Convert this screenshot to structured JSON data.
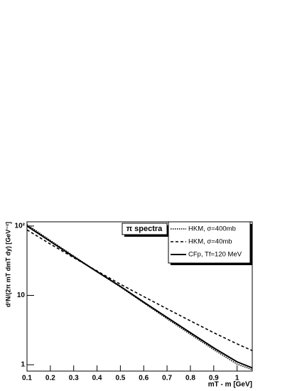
{
  "chart_data": {
    "type": "line",
    "title": "π spectra",
    "x_label": "mT - m [GeV]",
    "y_label": "d²N/(2π mT dmT dy) [GeV⁻²]",
    "x": [
      0.1,
      0.2,
      0.3,
      0.4,
      0.5,
      0.6,
      0.7,
      0.8,
      0.9,
      1.0,
      1.065
    ],
    "series": [
      {
        "name": "HKM, σ=400mb",
        "color": "#000000",
        "line_style": "dotted",
        "values": [
          105,
          62,
          37,
          22,
          13.2,
          7.8,
          4.6,
          2.75,
          1.65,
          1.02,
          0.85
        ]
      },
      {
        "name": "HKM, σ=40mb",
        "color": "#000000",
        "line_style": "dashed",
        "values": [
          88,
          55,
          35,
          22.5,
          14.5,
          9.6,
          6.4,
          4.3,
          2.9,
          2.0,
          1.6
        ]
      },
      {
        "name": "CFp, Tf=120 MeV",
        "color": "#000000",
        "line_style": "solid",
        "values": [
          100,
          60,
          36,
          22,
          13.5,
          8,
          4.8,
          2.9,
          1.75,
          1.1,
          0.9
        ]
      }
    ],
    "xlim": [
      0.1,
      1.065
    ],
    "xticks": [
      0.1,
      0.2,
      0.3,
      0.4,
      0.5,
      0.6,
      0.7,
      0.8,
      0.9,
      1
    ],
    "ylim": [
      0.81,
      115
    ],
    "yticks": [
      1,
      10,
      {
        "value": 100,
        "label": "10²"
      }
    ],
    "y_log": true,
    "legend": "top-right"
  }
}
